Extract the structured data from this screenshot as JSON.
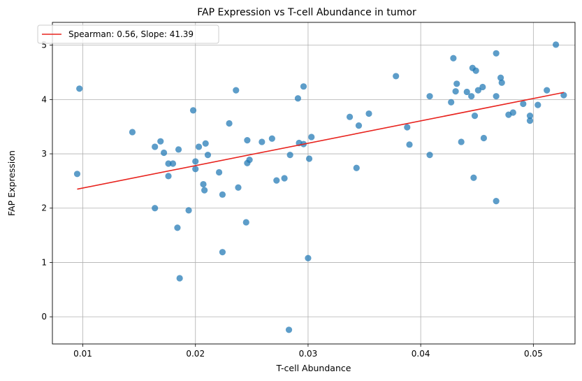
{
  "chart_data": {
    "type": "scatter",
    "title": "FAP Expression vs T-cell Abundance in tumor",
    "xlabel": "T-cell Abundance",
    "ylabel": "FAP Expression",
    "xlim": [
      0.0073,
      0.0537
    ],
    "ylim": [
      -0.5,
      5.42
    ],
    "xticks": [
      0.01,
      0.02,
      0.03,
      0.04,
      0.05
    ],
    "xtick_labels": [
      "0.01",
      "0.02",
      "0.03",
      "0.04",
      "0.05"
    ],
    "yticks": [
      0,
      1,
      2,
      3,
      4,
      5
    ],
    "ytick_labels": [
      "0",
      "1",
      "2",
      "3",
      "4",
      "5"
    ],
    "grid": true,
    "legend_position": "top-left",
    "points_color": "#1f77b4",
    "fit_color": "#e8231e",
    "points": {
      "x": [
        0.0095,
        0.0097,
        0.0144,
        0.0164,
        0.0164,
        0.0169,
        0.0172,
        0.0176,
        0.0176,
        0.018,
        0.0184,
        0.0186,
        0.0185,
        0.0194,
        0.0198,
        0.02,
        0.02,
        0.0203,
        0.0207,
        0.0208,
        0.0209,
        0.0211,
        0.0221,
        0.0224,
        0.0224,
        0.023,
        0.0236,
        0.0238,
        0.0245,
        0.0246,
        0.0246,
        0.0248,
        0.0259,
        0.0268,
        0.0272,
        0.0279,
        0.0283,
        0.0284,
        0.0291,
        0.0292,
        0.0296,
        0.0296,
        0.03,
        0.0301,
        0.0303,
        0.0337,
        0.0343,
        0.0345,
        0.0354,
        0.0378,
        0.0388,
        0.039,
        0.0408,
        0.0408,
        0.0427,
        0.0429,
        0.0431,
        0.0432,
        0.0436,
        0.0441,
        0.0445,
        0.0446,
        0.0447,
        0.0448,
        0.0449,
        0.0451,
        0.0455,
        0.0456,
        0.0467,
        0.0467,
        0.0467,
        0.0471,
        0.0472,
        0.0478,
        0.0482,
        0.0491,
        0.0497,
        0.0497,
        0.0504,
        0.0512,
        0.052,
        0.0527
      ],
      "y": [
        2.63,
        4.2,
        3.4,
        3.13,
        2.0,
        3.23,
        3.02,
        2.82,
        2.59,
        2.82,
        1.64,
        0.71,
        3.08,
        1.96,
        3.8,
        2.72,
        2.86,
        3.13,
        2.44,
        2.33,
        3.19,
        2.98,
        2.66,
        2.25,
        1.19,
        3.56,
        4.17,
        2.38,
        1.74,
        2.83,
        3.25,
        2.89,
        3.22,
        3.28,
        2.51,
        2.55,
        -0.24,
        2.98,
        4.02,
        3.2,
        3.18,
        4.24,
        1.08,
        2.91,
        3.31,
        3.68,
        2.74,
        3.52,
        3.74,
        4.43,
        3.49,
        3.17,
        4.06,
        2.98,
        3.95,
        4.76,
        4.15,
        4.29,
        3.22,
        4.14,
        4.06,
        4.58,
        2.56,
        3.7,
        4.53,
        4.17,
        4.23,
        3.29,
        4.85,
        2.13,
        4.06,
        4.4,
        4.31,
        3.72,
        3.76,
        3.92,
        3.7,
        3.61,
        3.9,
        4.17,
        5.01,
        4.08
      ]
    },
    "fit": {
      "x": [
        0.0095,
        0.0527
      ],
      "y": [
        2.35,
        4.13
      ]
    },
    "legend_label": "Spearman: 0.56, Slope: 41.39"
  }
}
